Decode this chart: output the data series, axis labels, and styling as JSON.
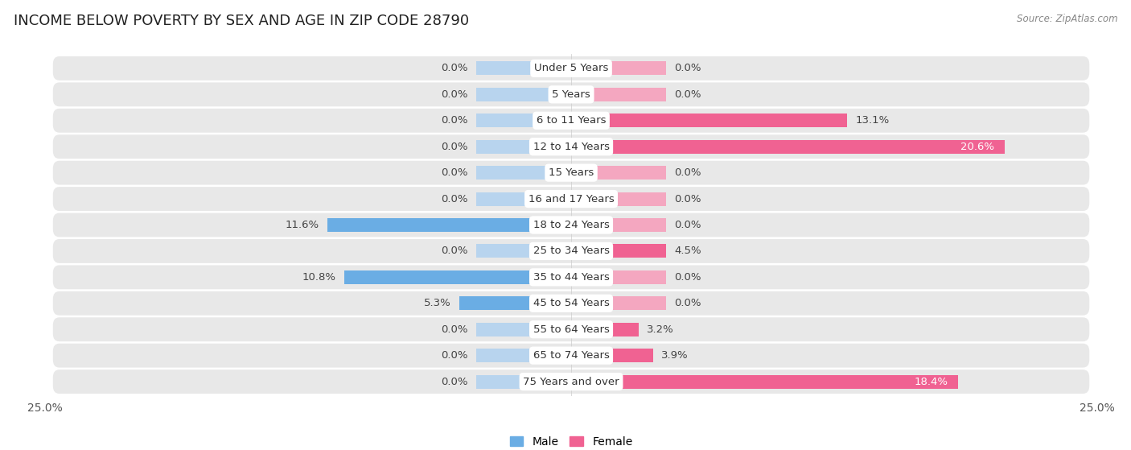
{
  "title": "INCOME BELOW POVERTY BY SEX AND AGE IN ZIP CODE 28790",
  "source": "Source: ZipAtlas.com",
  "categories": [
    "Under 5 Years",
    "5 Years",
    "6 to 11 Years",
    "12 to 14 Years",
    "15 Years",
    "16 and 17 Years",
    "18 to 24 Years",
    "25 to 34 Years",
    "35 to 44 Years",
    "45 to 54 Years",
    "55 to 64 Years",
    "65 to 74 Years",
    "75 Years and over"
  ],
  "male_values": [
    0.0,
    0.0,
    0.0,
    0.0,
    0.0,
    0.0,
    11.6,
    0.0,
    10.8,
    5.3,
    0.0,
    0.0,
    0.0
  ],
  "female_values": [
    0.0,
    0.0,
    13.1,
    20.6,
    0.0,
    0.0,
    0.0,
    4.5,
    0.0,
    0.0,
    3.2,
    3.9,
    18.4
  ],
  "male_color": "#6aade4",
  "female_color": "#f06292",
  "male_color_light": "#b8d4ee",
  "female_color_light": "#f4a7c0",
  "xlim": 25.0,
  "bar_height": 0.52,
  "stub_pct": 4.5,
  "title_fontsize": 13,
  "label_fontsize": 9.5,
  "tick_fontsize": 10,
  "category_fontsize": 9.5,
  "legend_fontsize": 10,
  "background_color": "#ffffff",
  "row_bg_color": "#e8e8e8",
  "male_label": "Male",
  "female_label": "Female"
}
